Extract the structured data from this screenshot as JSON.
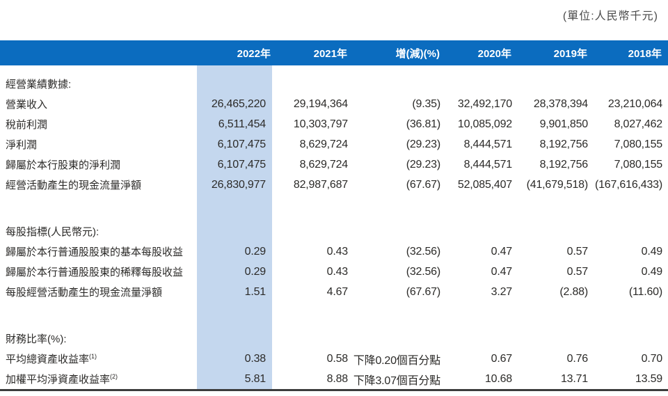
{
  "unit_note": "(單位:人民幣千元)",
  "colors": {
    "header_bg": "#0b6cbf",
    "header_text": "#ffffff",
    "highlight_band": "#c4d7ee",
    "text": "#2b2a28",
    "bottom_rule": "#3c3c3c"
  },
  "table": {
    "columns": [
      "2022年",
      "2021年",
      "增(減)(%)",
      "2020年",
      "2019年",
      "2018年"
    ],
    "rows": [
      {
        "type": "section",
        "label": "經營業績數據:"
      },
      {
        "type": "data",
        "label": "營業收入",
        "values": [
          "26,465,220",
          "29,194,364",
          "(9.35)",
          "32,492,170",
          "28,378,394",
          "23,210,064"
        ]
      },
      {
        "type": "data",
        "label": "稅前利潤",
        "values": [
          "6,511,454",
          "10,303,797",
          "(36.81)",
          "10,085,092",
          "9,901,850",
          "8,027,462"
        ]
      },
      {
        "type": "data",
        "label": "淨利潤",
        "values": [
          "6,107,475",
          "8,629,724",
          "(29.23)",
          "8,444,571",
          "8,192,756",
          "7,080,155"
        ]
      },
      {
        "type": "data",
        "label": "歸屬於本行股東的淨利潤",
        "values": [
          "6,107,475",
          "8,629,724",
          "(29.23)",
          "8,444,571",
          "8,192,756",
          "7,080,155"
        ]
      },
      {
        "type": "data",
        "label": "經營活動產生的現金流量淨額",
        "values": [
          "26,830,977",
          "82,987,687",
          "(67.67)",
          "52,085,407",
          "(41,679,518)",
          "(167,616,433)"
        ]
      },
      {
        "type": "spacer"
      },
      {
        "type": "section",
        "label": "每股指標(人民幣元):"
      },
      {
        "type": "data",
        "label": "歸屬於本行普通股股東的基本每股收益",
        "values": [
          "0.29",
          "0.43",
          "(32.56)",
          "0.47",
          "0.57",
          "0.49"
        ]
      },
      {
        "type": "data",
        "label": "歸屬於本行普通股股東的稀釋每股收益",
        "values": [
          "0.29",
          "0.43",
          "(32.56)",
          "0.47",
          "0.57",
          "0.49"
        ]
      },
      {
        "type": "data",
        "label": "每股經營活動產生的現金流量淨額",
        "values": [
          "1.51",
          "4.67",
          "(67.67)",
          "3.27",
          "(2.88)",
          "(11.60)"
        ]
      },
      {
        "type": "spacer"
      },
      {
        "type": "section",
        "label": "財務比率(%):"
      },
      {
        "type": "data",
        "label": "平均總資產收益率",
        "label_sup": "(1)",
        "values": [
          "0.38",
          "0.58",
          "下降0.20個百分點",
          "0.67",
          "0.76",
          "0.70"
        ]
      },
      {
        "type": "data",
        "label": "加權平均淨資產收益率",
        "label_sup": "(2)",
        "values": [
          "5.81",
          "8.88",
          "下降3.07個百分點",
          "10.68",
          "13.71",
          "13.59"
        ]
      }
    ]
  }
}
